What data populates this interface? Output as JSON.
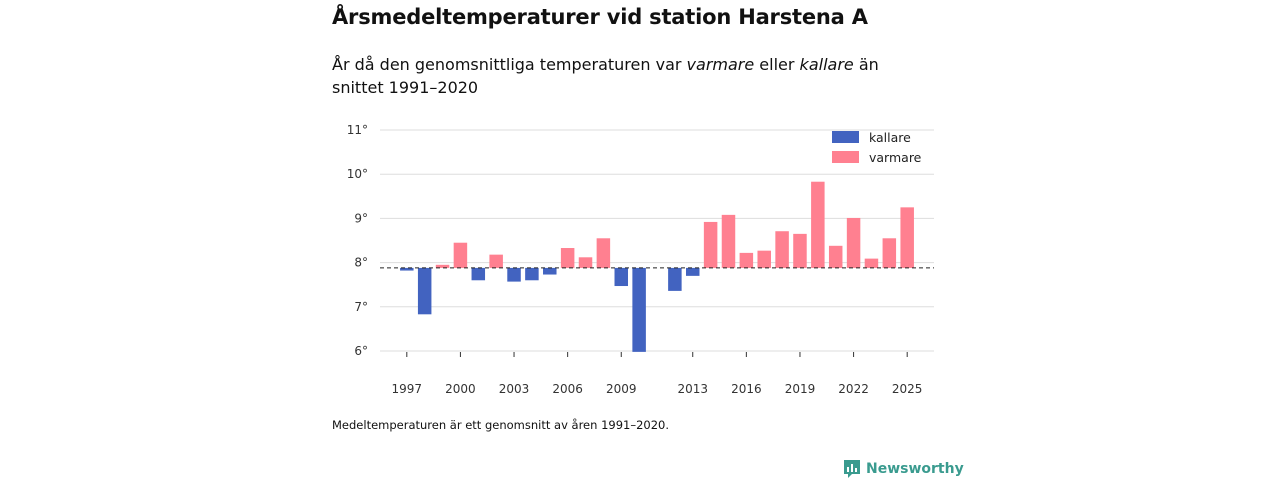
{
  "title": "Årsmedeltemperaturer vid station Harstena A",
  "subtitle": {
    "part1": "År då den genomsnittliga temperaturen var ",
    "warm_word": "varmare",
    "part2": " eller ",
    "cold_word": "kallare",
    "part3": " än snittet 1991–2020"
  },
  "note": "Medeltemperaturen är ett genomsnitt av åren 1991–2020.",
  "brand": "Newsworthy",
  "colors": {
    "colder": "#4263c0",
    "warmer": "#ff8090",
    "grid": "#dddddd",
    "brand": "#3a9b8f"
  },
  "chart_data": {
    "type": "bar",
    "title": "Årsmedeltemperaturer vid station Harstena A",
    "baseline": 7.88,
    "ylim": [
      6,
      11
    ],
    "yticks": [
      6,
      7,
      8,
      9,
      10,
      11
    ],
    "ytick_labels": [
      "6°",
      "7°",
      "8°",
      "9°",
      "10°",
      "11°"
    ],
    "xticks": [
      1997,
      2000,
      2003,
      2006,
      2009,
      2013,
      2016,
      2019,
      2022,
      2025
    ],
    "xtick_labels": [
      "1997",
      "2000",
      "2003",
      "2006",
      "2009",
      "2013",
      "2016",
      "2019",
      "2022",
      "2025"
    ],
    "legend": [
      {
        "key": "colder",
        "label": "kallare"
      },
      {
        "key": "warmer",
        "label": "varmare"
      }
    ],
    "legend_position": "top-right",
    "x_range": [
      1995.5,
      2026.5
    ],
    "series": [
      {
        "x": 1997,
        "value": 7.82
      },
      {
        "x": 1998,
        "value": 6.83
      },
      {
        "x": 1999,
        "value": 7.95
      },
      {
        "x": 2000,
        "value": 8.45
      },
      {
        "x": 2001,
        "value": 7.6
      },
      {
        "x": 2002,
        "value": 8.18
      },
      {
        "x": 2003,
        "value": 7.57
      },
      {
        "x": 2004,
        "value": 7.6
      },
      {
        "x": 2005,
        "value": 7.73
      },
      {
        "x": 2006,
        "value": 8.33
      },
      {
        "x": 2007,
        "value": 8.12
      },
      {
        "x": 2008,
        "value": 8.55
      },
      {
        "x": 2009,
        "value": 7.47
      },
      {
        "x": 2010,
        "value": 5.98
      },
      {
        "x": 2012,
        "value": 7.36
      },
      {
        "x": 2013,
        "value": 7.7
      },
      {
        "x": 2014,
        "value": 8.92
      },
      {
        "x": 2015,
        "value": 9.08
      },
      {
        "x": 2016,
        "value": 8.22
      },
      {
        "x": 2017,
        "value": 8.27
      },
      {
        "x": 2018,
        "value": 8.71
      },
      {
        "x": 2019,
        "value": 8.65
      },
      {
        "x": 2020,
        "value": 9.83
      },
      {
        "x": 2021,
        "value": 8.38
      },
      {
        "x": 2022,
        "value": 9.01
      },
      {
        "x": 2023,
        "value": 8.09
      },
      {
        "x": 2024,
        "value": 8.55
      },
      {
        "x": 2025,
        "value": 9.25
      }
    ]
  }
}
